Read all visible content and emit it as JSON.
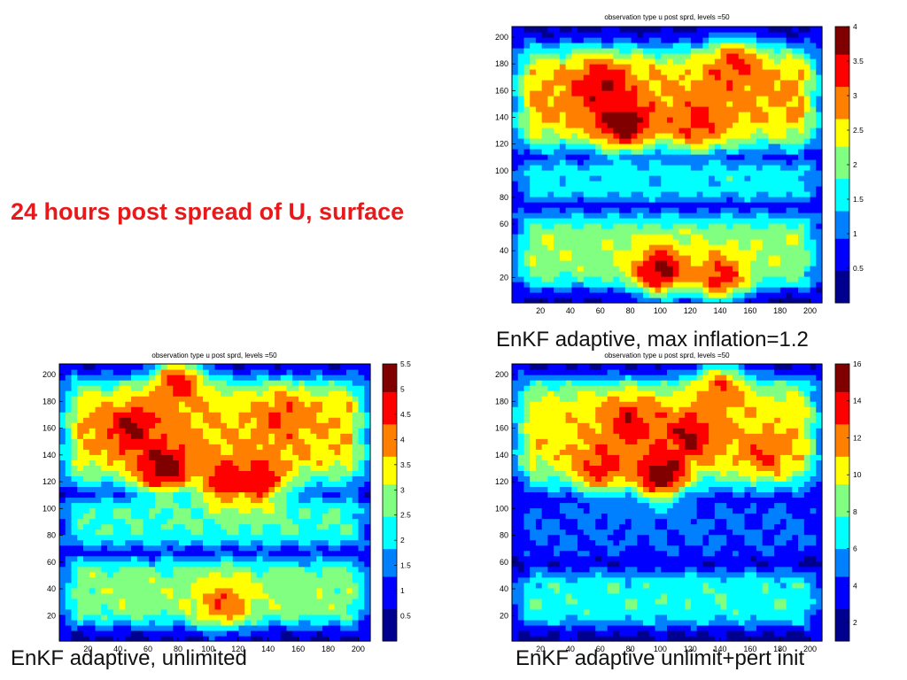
{
  "slide": {
    "title": "24 hours post spread of U, surface",
    "captions": [
      "EnKF adaptive, max inflation=1.2",
      "EnKF adaptive, unlimited",
      "EnKF adaptive unlimit+pert init"
    ]
  },
  "colormap": [
    "#00008f",
    "#0000ff",
    "#0080ff",
    "#00ffff",
    "#80ff80",
    "#ffff00",
    "#ff8000",
    "#ff0000",
    "#800000"
  ],
  "chart_data": [
    {
      "type": "heatmap",
      "title": "observation type u post sprd, levels =50",
      "x_ticks": [
        20,
        40,
        60,
        80,
        100,
        120,
        140,
        160,
        180,
        200
      ],
      "y_ticks": [
        20,
        40,
        60,
        80,
        100,
        120,
        140,
        160,
        180,
        200
      ],
      "xlim": [
        1,
        208
      ],
      "ylim": [
        1,
        208
      ],
      "colorbar": {
        "min": 0,
        "max": 4,
        "ticks": [
          0.5,
          1,
          1.5,
          2,
          2.5,
          3,
          3.5,
          4
        ]
      },
      "hotspots": [
        {
          "x": 75,
          "y": 135,
          "value": 4.0
        },
        {
          "x": 60,
          "y": 165,
          "value": 3.6
        },
        {
          "x": 125,
          "y": 135,
          "value": 3.3
        },
        {
          "x": 150,
          "y": 180,
          "value": 3.3
        },
        {
          "x": 100,
          "y": 25,
          "value": 3.8
        },
        {
          "x": 140,
          "y": 20,
          "value": 3.4
        }
      ],
      "region_levels": [
        {
          "name": "upper",
          "y": [
            115,
            195
          ],
          "value": 2.7
        },
        {
          "name": "middle",
          "y": [
            75,
            110
          ],
          "value": 1.5
        },
        {
          "name": "lower",
          "y": [
            10,
            70
          ],
          "value": 2.1
        }
      ]
    },
    {
      "type": "heatmap",
      "title": "observation type u post sprd, levels =50",
      "x_ticks": [
        20,
        40,
        60,
        80,
        100,
        120,
        140,
        160,
        180,
        200
      ],
      "y_ticks": [
        20,
        40,
        60,
        80,
        100,
        120,
        140,
        160,
        180,
        200
      ],
      "xlim": [
        1,
        208
      ],
      "ylim": [
        1,
        208
      ],
      "colorbar": {
        "min": 0,
        "max": 5.5,
        "ticks": [
          0.5,
          1,
          1.5,
          2,
          2.5,
          3,
          3.5,
          4,
          4.5,
          5,
          5.5
        ]
      },
      "hotspots": [
        {
          "x": 70,
          "y": 130,
          "value": 5.5
        },
        {
          "x": 50,
          "y": 160,
          "value": 5.0
        },
        {
          "x": 110,
          "y": 120,
          "value": 4.8
        },
        {
          "x": 135,
          "y": 120,
          "value": 4.8
        },
        {
          "x": 80,
          "y": 195,
          "value": 4.6
        },
        {
          "x": 150,
          "y": 170,
          "value": 4.3
        },
        {
          "x": 110,
          "y": 30,
          "value": 4.2
        }
      ],
      "region_levels": [
        {
          "name": "upper",
          "y": [
            115,
            200
          ],
          "value": 3.6
        },
        {
          "name": "middle",
          "y": [
            70,
            110
          ],
          "value": 2.4
        },
        {
          "name": "lower",
          "y": [
            10,
            65
          ],
          "value": 2.8
        }
      ]
    },
    {
      "type": "heatmap",
      "title": "observation type u post sprd, levels =50",
      "x_ticks": [
        20,
        40,
        60,
        80,
        100,
        120,
        140,
        160,
        180,
        200
      ],
      "y_ticks": [
        20,
        40,
        60,
        80,
        100,
        120,
        140,
        160,
        180,
        200
      ],
      "xlim": [
        1,
        208
      ],
      "ylim": [
        1,
        208
      ],
      "colorbar": {
        "min": 1,
        "max": 16,
        "ticks": [
          2,
          4,
          6,
          8,
          10,
          12,
          14,
          16
        ]
      },
      "hotspots": [
        {
          "x": 100,
          "y": 125,
          "value": 16
        },
        {
          "x": 120,
          "y": 155,
          "value": 14.5
        },
        {
          "x": 80,
          "y": 165,
          "value": 14
        },
        {
          "x": 60,
          "y": 130,
          "value": 13.5
        },
        {
          "x": 170,
          "y": 140,
          "value": 12.5
        },
        {
          "x": 140,
          "y": 190,
          "value": 12.5
        }
      ],
      "region_levels": [
        {
          "name": "upper",
          "y": [
            115,
            200
          ],
          "value": 10.5
        },
        {
          "name": "middle",
          "y": [
            60,
            110
          ],
          "value": 4.5
        },
        {
          "name": "lower",
          "y": [
            10,
            55
          ],
          "value": 7.2
        }
      ]
    }
  ]
}
